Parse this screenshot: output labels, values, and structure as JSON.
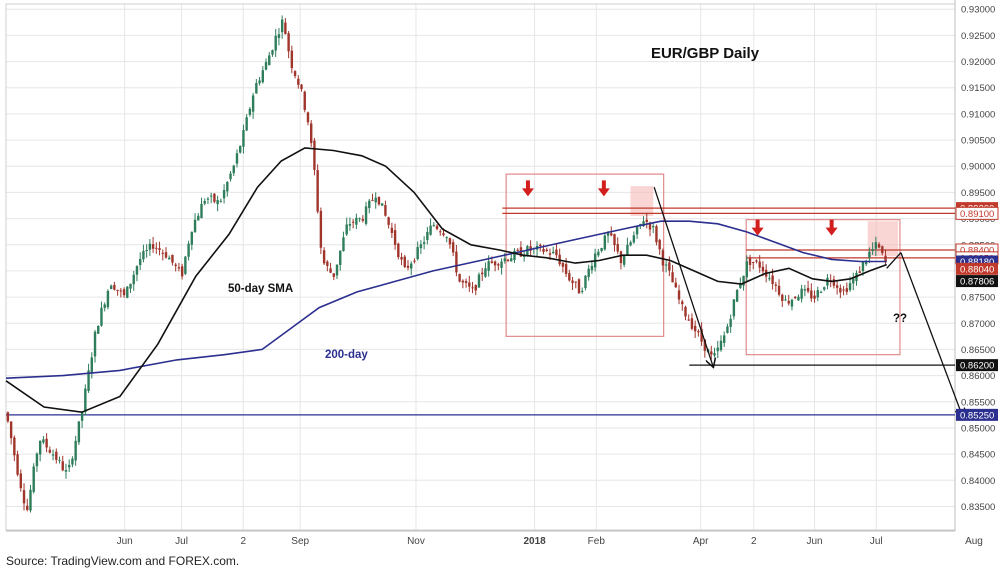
{
  "source_note": "Source: TradingView.com and FOREX.com.",
  "colors": {
    "up_candle": "#2e7d5b",
    "down_candle": "#a0352c",
    "sma50": "#111111",
    "sma200": "#2b2f8f",
    "resistance": "#c0392b",
    "support_black": "#111111",
    "support_blue": "#2b2f8f",
    "box": "#e28a8a",
    "arrow_red": "#d31e1e",
    "grid": "#e6e6e6"
  },
  "chart_data": {
    "type": "candlestick",
    "title": "EUR/GBP Daily",
    "ylim": [
      0.8305,
      0.931
    ],
    "y_ticks": [
      "0.93000",
      "0.92500",
      "0.92000",
      "0.91500",
      "0.91000",
      "0.90500",
      "0.90000",
      "0.89500",
      "0.89000",
      "0.88500",
      "0.88000",
      "0.87500",
      "0.87000",
      "0.86500",
      "0.86000",
      "0.85500",
      "0.85000",
      "0.84500",
      "0.84000",
      "0.83500"
    ],
    "x_ticks": [
      {
        "label": "Jun",
        "t": 0.125
      },
      {
        "label": "Jul",
        "t": 0.185
      },
      {
        "label": "2",
        "t": 0.25
      },
      {
        "label": "Sep",
        "t": 0.31
      },
      {
        "label": "Nov",
        "t": 0.432
      },
      {
        "label": "2018",
        "t": 0.557
      },
      {
        "label": "Feb",
        "t": 0.622
      },
      {
        "label": "Apr",
        "t": 0.732
      },
      {
        "label": "2",
        "t": 0.788
      },
      {
        "label": "Jun",
        "t": 0.852
      },
      {
        "label": "Jul",
        "t": 0.917
      },
      {
        "label": "Aug",
        "t": 1.02
      }
    ],
    "annotations": [
      {
        "text": "50-day SMA",
        "kind": "label"
      },
      {
        "text": "200-day",
        "kind": "label"
      },
      {
        "text": "??",
        "kind": "label"
      }
    ],
    "price_path": [
      [
        0.0,
        0.853
      ],
      [
        0.012,
        0.842
      ],
      [
        0.022,
        0.834
      ],
      [
        0.035,
        0.848
      ],
      [
        0.05,
        0.845
      ],
      [
        0.065,
        0.841
      ],
      [
        0.08,
        0.853
      ],
      [
        0.095,
        0.869
      ],
      [
        0.11,
        0.878
      ],
      [
        0.125,
        0.875
      ],
      [
        0.14,
        0.882
      ],
      [
        0.155,
        0.885
      ],
      [
        0.17,
        0.883
      ],
      [
        0.185,
        0.879
      ],
      [
        0.195,
        0.888
      ],
      [
        0.21,
        0.894
      ],
      [
        0.225,
        0.893
      ],
      [
        0.24,
        0.9
      ],
      [
        0.25,
        0.906
      ],
      [
        0.262,
        0.915
      ],
      [
        0.275,
        0.92
      ],
      [
        0.285,
        0.925
      ],
      [
        0.292,
        0.928
      ],
      [
        0.3,
        0.92
      ],
      [
        0.31,
        0.915
      ],
      [
        0.318,
        0.909
      ],
      [
        0.325,
        0.899
      ],
      [
        0.333,
        0.882
      ],
      [
        0.345,
        0.879
      ],
      [
        0.36,
        0.889
      ],
      [
        0.375,
        0.89
      ],
      [
        0.39,
        0.895
      ],
      [
        0.405,
        0.888
      ],
      [
        0.42,
        0.88
      ],
      [
        0.435,
        0.884
      ],
      [
        0.45,
        0.889
      ],
      [
        0.465,
        0.887
      ],
      [
        0.478,
        0.878
      ],
      [
        0.492,
        0.876
      ],
      [
        0.505,
        0.881
      ],
      [
        0.52,
        0.882
      ],
      [
        0.535,
        0.883
      ],
      [
        0.55,
        0.884
      ],
      [
        0.565,
        0.884
      ],
      [
        0.58,
        0.883
      ],
      [
        0.592,
        0.879
      ],
      [
        0.605,
        0.876
      ],
      [
        0.62,
        0.883
      ],
      [
        0.635,
        0.887
      ],
      [
        0.648,
        0.882
      ],
      [
        0.66,
        0.886
      ],
      [
        0.672,
        0.89
      ],
      [
        0.682,
        0.888
      ],
      [
        0.692,
        0.882
      ],
      [
        0.7,
        0.879
      ],
      [
        0.712,
        0.873
      ],
      [
        0.722,
        0.87
      ],
      [
        0.735,
        0.866
      ],
      [
        0.745,
        0.863
      ],
      [
        0.758,
        0.868
      ],
      [
        0.77,
        0.876
      ],
      [
        0.782,
        0.882
      ],
      [
        0.795,
        0.881
      ],
      [
        0.808,
        0.878
      ],
      [
        0.822,
        0.874
      ],
      [
        0.838,
        0.876
      ],
      [
        0.852,
        0.875
      ],
      [
        0.868,
        0.879
      ],
      [
        0.882,
        0.876
      ],
      [
        0.896,
        0.879
      ],
      [
        0.908,
        0.883
      ],
      [
        0.918,
        0.885
      ],
      [
        0.928,
        0.881
      ]
    ],
    "sma50": [
      [
        0.0,
        0.859
      ],
      [
        0.04,
        0.854
      ],
      [
        0.08,
        0.853
      ],
      [
        0.12,
        0.856
      ],
      [
        0.16,
        0.866
      ],
      [
        0.2,
        0.879
      ],
      [
        0.235,
        0.887
      ],
      [
        0.265,
        0.896
      ],
      [
        0.29,
        0.901
      ],
      [
        0.315,
        0.9035
      ],
      [
        0.345,
        0.903
      ],
      [
        0.375,
        0.902
      ],
      [
        0.4,
        0.9
      ],
      [
        0.43,
        0.895
      ],
      [
        0.46,
        0.888
      ],
      [
        0.49,
        0.885
      ],
      [
        0.52,
        0.884
      ],
      [
        0.545,
        0.883
      ],
      [
        0.57,
        0.8825
      ],
      [
        0.6,
        0.8815
      ],
      [
        0.625,
        0.882
      ],
      [
        0.65,
        0.883
      ],
      [
        0.675,
        0.883
      ],
      [
        0.7,
        0.882
      ],
      [
        0.725,
        0.88
      ],
      [
        0.75,
        0.878
      ],
      [
        0.775,
        0.8775
      ],
      [
        0.8,
        0.8795
      ],
      [
        0.825,
        0.8805
      ],
      [
        0.85,
        0.8785
      ],
      [
        0.87,
        0.878
      ],
      [
        0.89,
        0.8785
      ],
      [
        0.91,
        0.88
      ],
      [
        0.928,
        0.8812
      ]
    ],
    "sma200": [
      [
        0.0,
        0.8595
      ],
      [
        0.06,
        0.86
      ],
      [
        0.12,
        0.861
      ],
      [
        0.18,
        0.863
      ],
      [
        0.23,
        0.864
      ],
      [
        0.27,
        0.865
      ],
      [
        0.3,
        0.869
      ],
      [
        0.33,
        0.873
      ],
      [
        0.37,
        0.876
      ],
      [
        0.41,
        0.878
      ],
      [
        0.45,
        0.88
      ],
      [
        0.5,
        0.882
      ],
      [
        0.55,
        0.884
      ],
      [
        0.6,
        0.886
      ],
      [
        0.65,
        0.888
      ],
      [
        0.69,
        0.8895
      ],
      [
        0.72,
        0.8895
      ],
      [
        0.75,
        0.889
      ],
      [
        0.78,
        0.8875
      ],
      [
        0.81,
        0.8855
      ],
      [
        0.84,
        0.8835
      ],
      [
        0.87,
        0.8822
      ],
      [
        0.9,
        0.8818
      ],
      [
        0.928,
        0.8818
      ]
    ],
    "horizontal_levels": [
      {
        "value": 0.892,
        "label": "0.89200",
        "style": "red",
        "x_from": 0.523
      },
      {
        "value": 0.891,
        "label": "0.89100",
        "style": "red",
        "x_from": 0.523
      },
      {
        "value": 0.884,
        "label": "0.88400",
        "style": "red",
        "x_from": 0.78
      },
      {
        "value": 0.8825,
        "label": "0.88250",
        "style": "red",
        "x_from": 0.78
      },
      {
        "value": 0.8818,
        "label": "0.88180",
        "style": "blue_badge"
      },
      {
        "value": 0.8804,
        "label": "0.88040",
        "style": "red_badge"
      },
      {
        "value": 0.87806,
        "label": "0.87806",
        "style": "black_badge"
      },
      {
        "value": 0.862,
        "label": "0.86200",
        "style": "black",
        "x_from": 0.72
      },
      {
        "value": 0.8525,
        "label": "0.85250",
        "style": "blue",
        "x_from": 0.0
      }
    ],
    "boxes": [
      {
        "x0": 0.527,
        "x1": 0.693,
        "y0": 0.8985,
        "y1": 0.8675
      },
      {
        "x0": 0.78,
        "x1": 0.942,
        "y0": 0.8898,
        "y1": 0.864
      }
    ],
    "highlight_boxes": [
      {
        "x0": 0.658,
        "x1": 0.682,
        "y0": 0.8962,
        "y1": 0.8905
      },
      {
        "x0": 0.908,
        "x1": 0.94,
        "y0": 0.8895,
        "y1": 0.8828
      }
    ],
    "down_arrows": [
      {
        "x": 0.55,
        "y": 0.895
      },
      {
        "x": 0.63,
        "y": 0.895
      },
      {
        "x": 0.792,
        "y": 0.8875
      },
      {
        "x": 0.87,
        "y": 0.8875
      }
    ],
    "trend_arrows": [
      {
        "from": [
          0.683,
          0.896
        ],
        "to": [
          0.745,
          0.8618
        ]
      },
      {
        "from": [
          0.928,
          0.8805
        ],
        "to": [
          0.943,
          0.8835
        ]
      },
      {
        "from": [
          0.943,
          0.8835
        ],
        "to": [
          1.008,
          0.8522
        ]
      }
    ]
  }
}
